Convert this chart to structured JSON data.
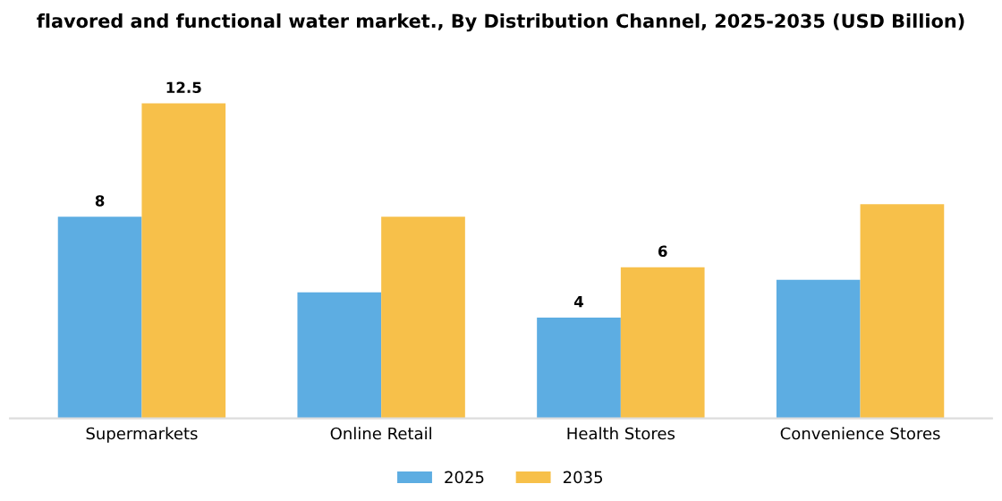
{
  "chart_data": {
    "type": "bar",
    "title": "flavored and functional water market., By Distribution Channel, 2025-2035 (USD Billion)",
    "categories": [
      "Supermarkets",
      "Online Retail",
      "Health Stores",
      "Convenience Stores"
    ],
    "series": [
      {
        "name": "2025",
        "color": "#5dade2",
        "values": [
          8,
          5,
          4,
          5.5
        ],
        "value_labels": [
          "8",
          null,
          "4",
          null
        ]
      },
      {
        "name": "2035",
        "color": "#f7c04a",
        "values": [
          12.5,
          8,
          6,
          8.5
        ],
        "value_labels": [
          "12.5",
          null,
          "6",
          null
        ]
      }
    ],
    "tick_labels": "x",
    "legend": "bottom"
  }
}
